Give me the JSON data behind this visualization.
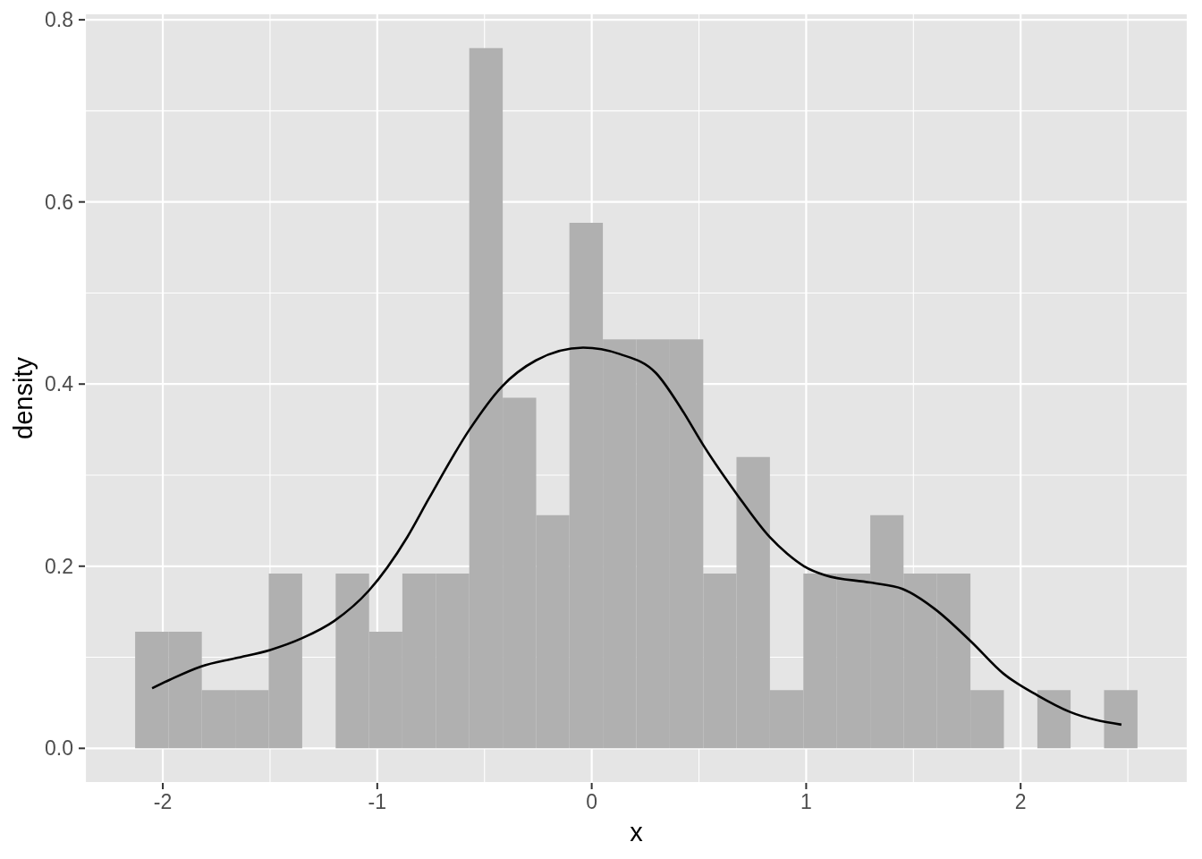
{
  "chart_data": {
    "type": "histogram",
    "xlabel": "x",
    "ylabel": "density",
    "bins": [
      -2.129,
      -1.973,
      -1.818,
      -1.662,
      -1.506,
      -1.35,
      -1.194,
      -1.038,
      -0.883,
      -0.727,
      -0.571,
      -0.415,
      -0.259,
      -0.104,
      0.052,
      0.208,
      0.364,
      0.52,
      0.675,
      0.831,
      0.987,
      1.143,
      1.299,
      1.454,
      1.61,
      1.766,
      1.922,
      2.078,
      2.233,
      2.389,
      2.545
    ],
    "series": [
      {
        "color": "#b0b0b0",
        "values": [
          0.128,
          0.128,
          0.064,
          0.064,
          0.192,
          0,
          0.192,
          0.128,
          0.192,
          0.192,
          0.769,
          0.385,
          0.256,
          0.577,
          0.449,
          0.449,
          0.449,
          0.192,
          0.32,
          0.064,
          0.192,
          0.192,
          0.256,
          0.192,
          0.192,
          0.064,
          0,
          0.064,
          0,
          0.064
        ]
      },
      {
        "type": "line",
        "color": "#000000",
        "x": [
          -2.05,
          -1.97,
          -1.82,
          -1.66,
          -1.5,
          -1.35,
          -1.2,
          -1.04,
          -0.86,
          -0.76,
          -0.57,
          -0.42,
          -0.26,
          -0.04,
          0.13,
          0.3,
          0.42,
          0.52,
          0.68,
          0.83,
          0.91,
          0.99,
          1.09,
          1.3,
          1.45,
          1.6,
          1.77,
          1.92,
          2.08,
          2.23,
          2.47
        ],
        "values": [
          0.066,
          0.075,
          0.09,
          0.099,
          0.108,
          0.121,
          0.14,
          0.173,
          0.232,
          0.274,
          0.35,
          0.397,
          0.426,
          0.44,
          0.433,
          0.412,
          0.372,
          0.333,
          0.278,
          0.232,
          0.214,
          0.2,
          0.19,
          0.182,
          0.175,
          0.153,
          0.117,
          0.082,
          0.058,
          0.04,
          0.026
        ]
      }
    ],
    "xlim": [
      -2.363,
      2.779
    ],
    "ylim": [
      -0.038,
      0.807
    ],
    "xticks": [
      -2,
      -1,
      0,
      1,
      2
    ],
    "yticks": [
      {
        "value": 0,
        "label": "0.0"
      },
      0.2,
      0.4,
      0.6,
      0.8
    ],
    "grid": true
  }
}
